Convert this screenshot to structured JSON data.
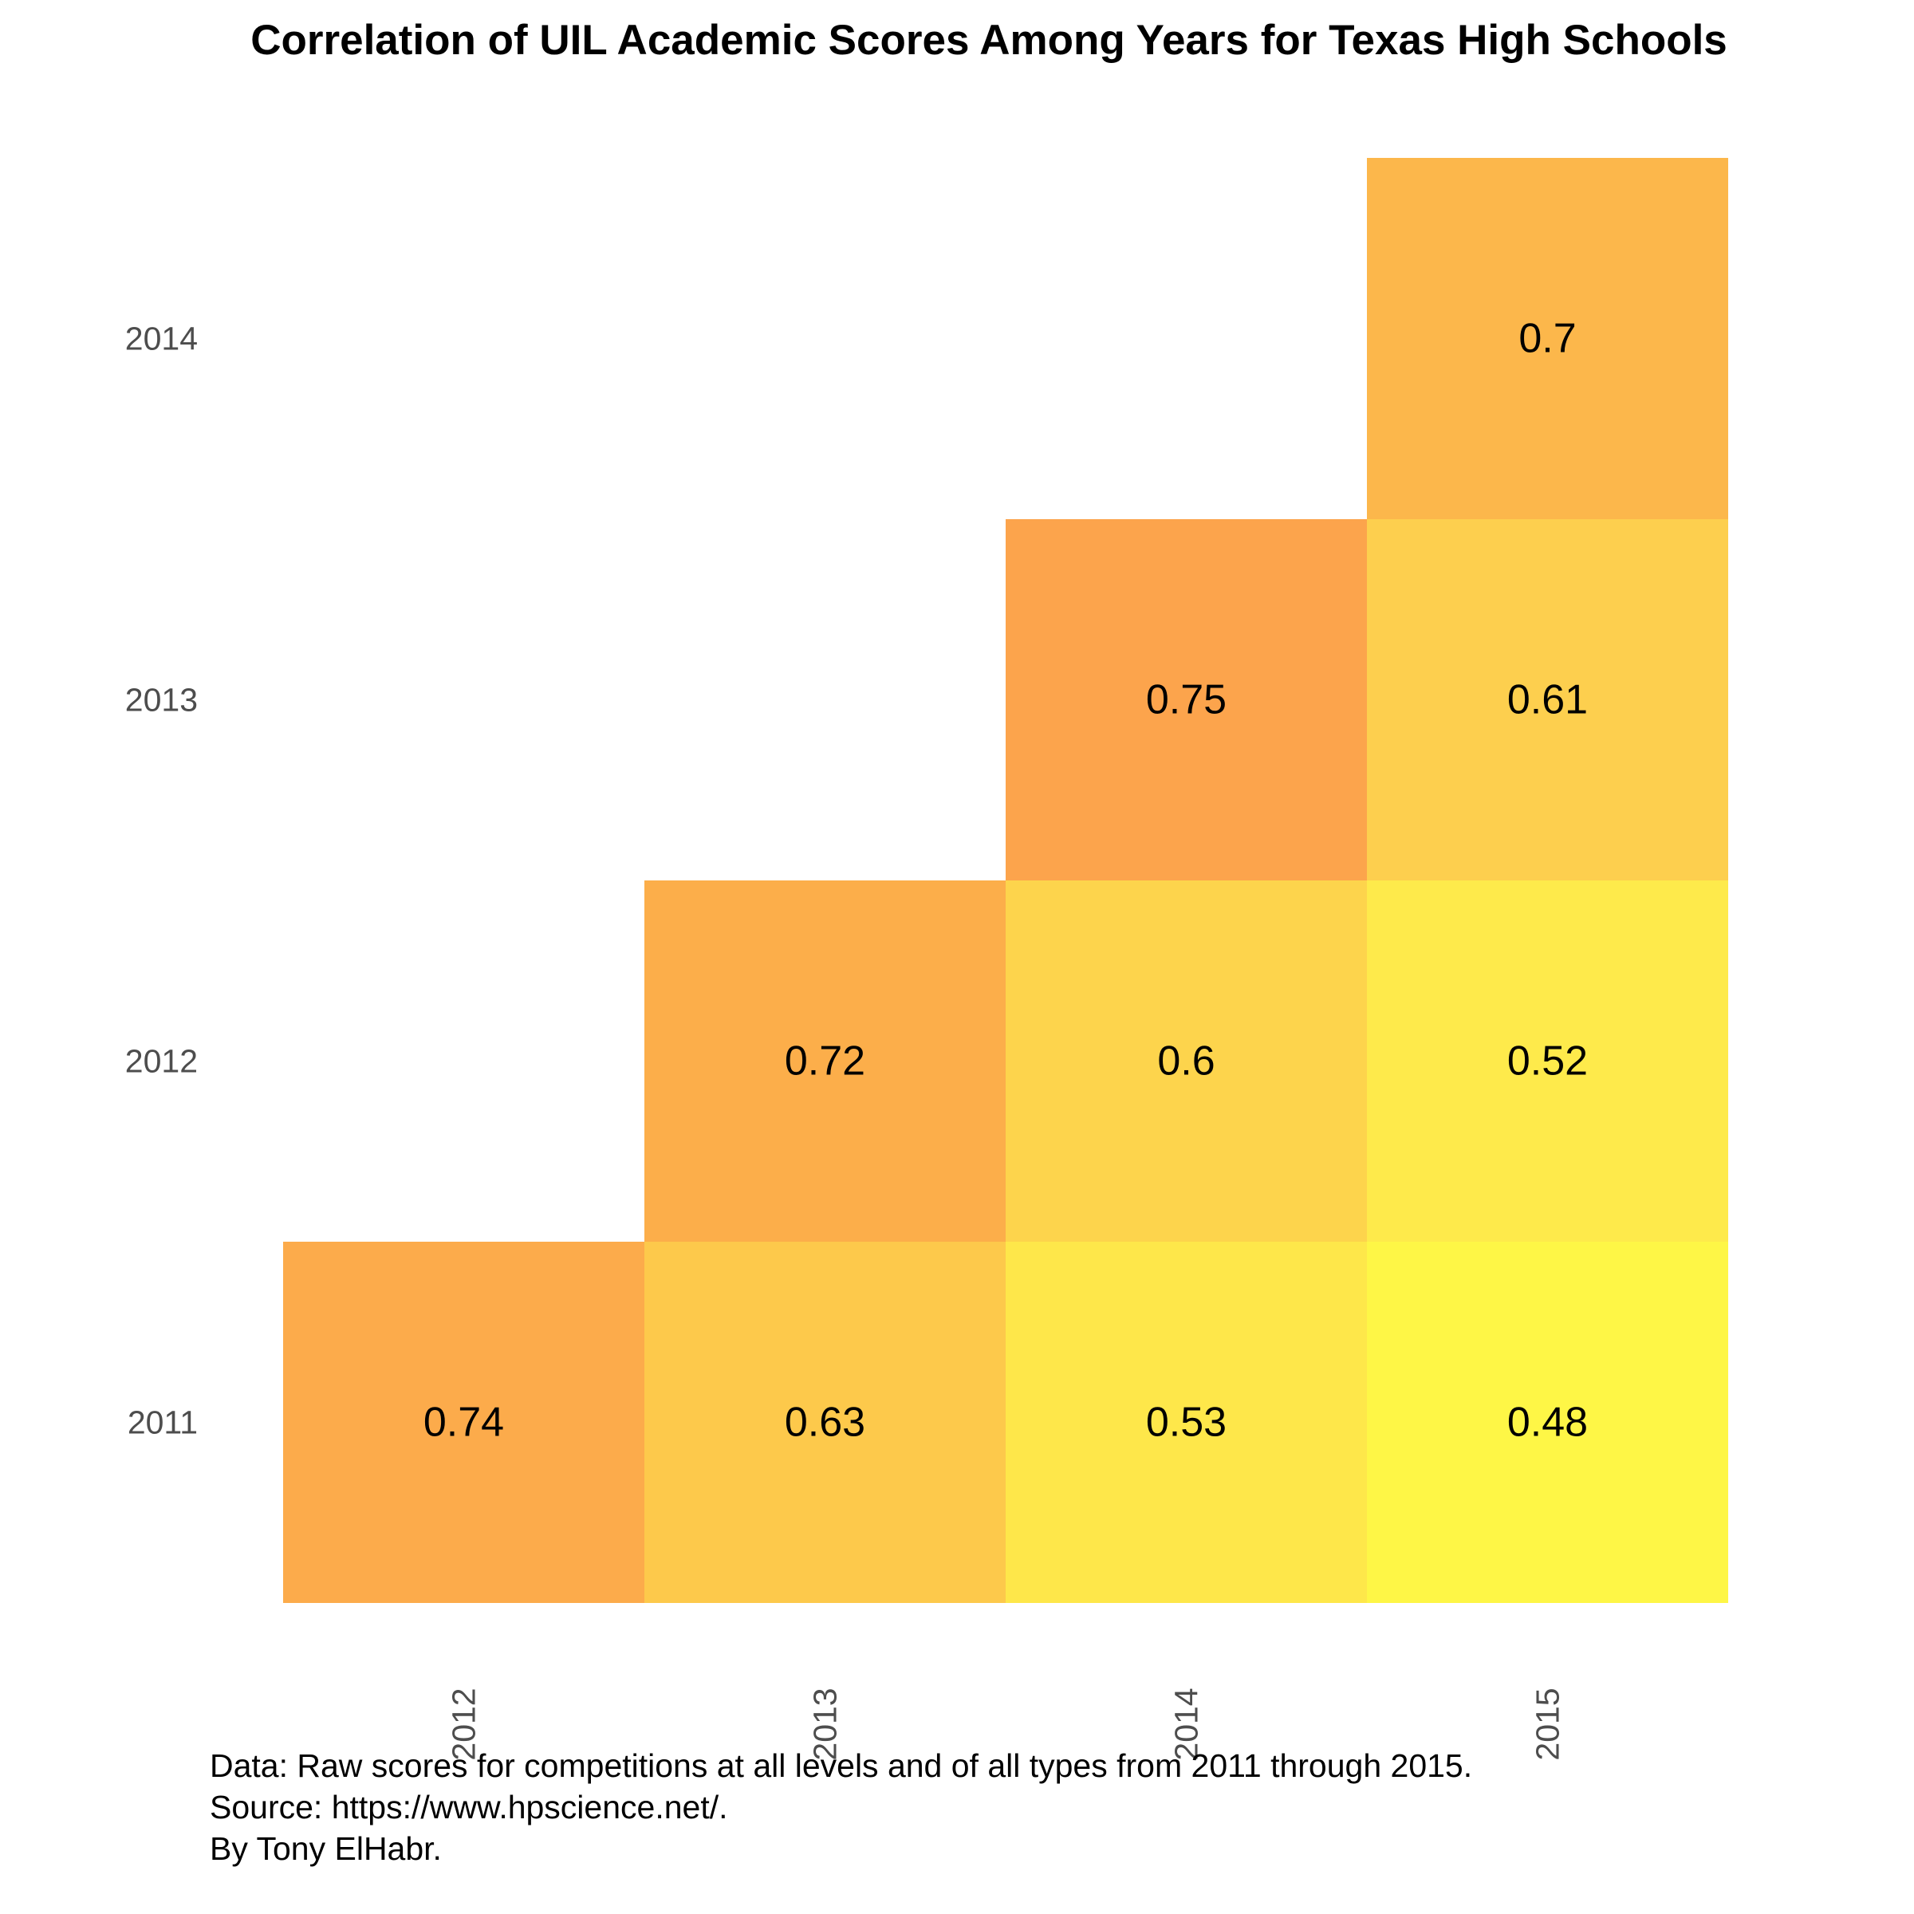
{
  "chart_data": {
    "type": "heatmap",
    "title": "Correlation of UIL Academic Scores Among Years for Texas High Schools",
    "x_categories": [
      "2012",
      "2013",
      "2014",
      "2015"
    ],
    "y_categories": [
      "2011",
      "2012",
      "2013",
      "2014"
    ],
    "cells": [
      {
        "x": "2012",
        "y": "2011",
        "value": 0.74,
        "label": "0.74",
        "color": "#fcab4b"
      },
      {
        "x": "2013",
        "y": "2011",
        "value": 0.63,
        "label": "0.63",
        "color": "#fdc94b"
      },
      {
        "x": "2014",
        "y": "2011",
        "value": 0.53,
        "label": "0.53",
        "color": "#fee74a"
      },
      {
        "x": "2015",
        "y": "2011",
        "value": 0.48,
        "label": "0.48",
        "color": "#fef646"
      },
      {
        "x": "2013",
        "y": "2012",
        "value": 0.72,
        "label": "0.72",
        "color": "#fcae4a"
      },
      {
        "x": "2014",
        "y": "2012",
        "value": 0.6,
        "label": "0.6",
        "color": "#fdd44c"
      },
      {
        "x": "2015",
        "y": "2012",
        "value": 0.52,
        "label": "0.52",
        "color": "#feea4b"
      },
      {
        "x": "2014",
        "y": "2013",
        "value": 0.75,
        "label": "0.75",
        "color": "#fca44c"
      },
      {
        "x": "2015",
        "y": "2013",
        "value": 0.61,
        "label": "0.61",
        "color": "#fdcf4e"
      },
      {
        "x": "2015",
        "y": "2014",
        "value": 0.7,
        "label": "0.7",
        "color": "#fcb74b"
      }
    ],
    "xlabel": "",
    "ylabel": "",
    "grid": false,
    "legend": "none"
  },
  "caption": {
    "data_line": "Data: Raw scores for competitions at all levels and of all types from 2011 through 2015.",
    "source_line": "Source: https://www.hpscience.net/.",
    "author_line": "By Tony ElHabr."
  }
}
